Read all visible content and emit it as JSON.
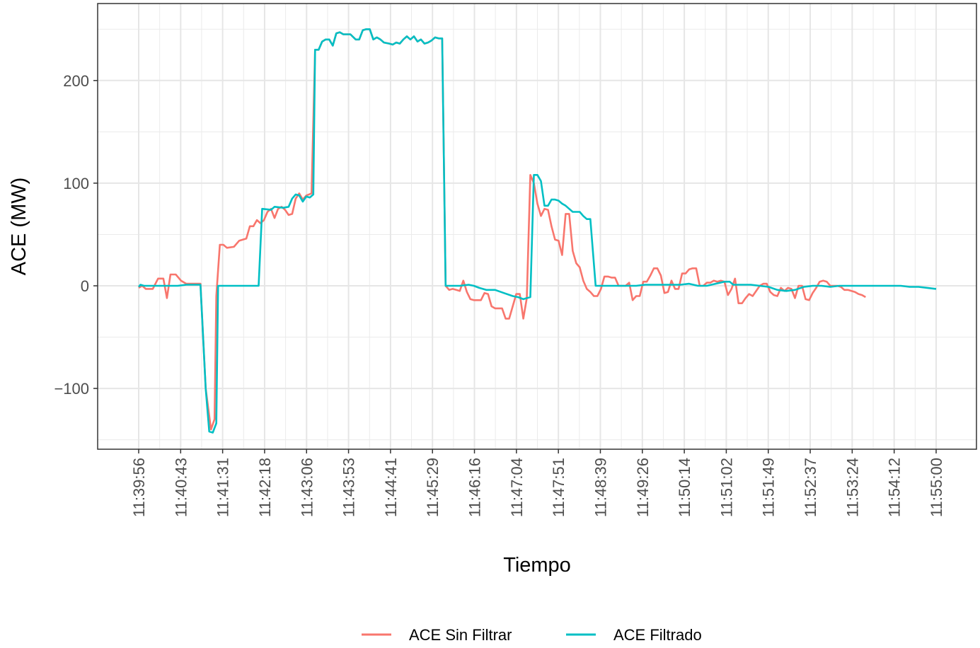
{
  "chart_data": {
    "type": "line",
    "title": "",
    "xlabel": "Tiempo",
    "ylabel": "ACE (MW)",
    "ylim": [
      -160,
      275
    ],
    "y_ticks": [
      -100,
      0,
      100,
      200
    ],
    "y_tick_labels": [
      "−100",
      "0",
      "100",
      "200"
    ],
    "x_ticks": [
      "11:39:56",
      "11:40:43",
      "11:41:31",
      "11:42:18",
      "11:43:06",
      "11:43:53",
      "11:44:41",
      "11:45:29",
      "11:46:16",
      "11:47:04",
      "11:47:51",
      "11:48:39",
      "11:49:26",
      "11:50:14",
      "11:51:02",
      "11:51:49",
      "11:52:37",
      "11:53:24",
      "11:54:12",
      "11:55:00"
    ],
    "grid": true,
    "legend_position": "bottom",
    "series": [
      {
        "name": "ACE Sin Filtrar",
        "color": "#F8766D",
        "points": [
          [
            "11:39:56",
            -2
          ],
          [
            "11:40:00",
            0
          ],
          [
            "11:40:04",
            -3
          ],
          [
            "11:40:12",
            -3
          ],
          [
            "11:40:18",
            7
          ],
          [
            "11:40:24",
            7
          ],
          [
            "11:40:28",
            -12
          ],
          [
            "11:40:32",
            11
          ],
          [
            "11:40:38",
            11
          ],
          [
            "11:40:44",
            5
          ],
          [
            "11:40:50",
            2
          ],
          [
            "11:40:56",
            2
          ],
          [
            "11:41:02",
            2
          ],
          [
            "11:41:06",
            2
          ],
          [
            "11:41:12",
            -100
          ],
          [
            "11:41:18",
            -140
          ],
          [
            "11:41:22",
            -130
          ],
          [
            "11:41:24",
            -10
          ],
          [
            "11:41:28",
            40
          ],
          [
            "11:41:32",
            40
          ],
          [
            "11:41:36",
            37
          ],
          [
            "11:41:44",
            38
          ],
          [
            "11:41:50",
            44
          ],
          [
            "11:41:58",
            46
          ],
          [
            "11:42:02",
            58
          ],
          [
            "11:42:06",
            58
          ],
          [
            "11:42:10",
            64
          ],
          [
            "11:42:14",
            61
          ],
          [
            "11:42:18",
            64
          ],
          [
            "11:42:22",
            72
          ],
          [
            "11:42:26",
            75
          ],
          [
            "11:42:30",
            66
          ],
          [
            "11:42:34",
            75
          ],
          [
            "11:42:38",
            77
          ],
          [
            "11:42:42",
            74
          ],
          [
            "11:42:46",
            69
          ],
          [
            "11:42:50",
            70
          ],
          [
            "11:42:54",
            85
          ],
          [
            "11:42:58",
            90
          ],
          [
            "11:43:02",
            84
          ],
          [
            "11:43:06",
            88
          ],
          [
            "11:43:12",
            90
          ]
        ]
      },
      {
        "name": "ACE Filtrado",
        "color": "#00BFC4",
        "points": [
          [
            "11:39:56",
            -1
          ],
          [
            "11:39:58",
            1
          ],
          [
            "11:40:02",
            0
          ],
          [
            "11:40:20",
            0
          ],
          [
            "11:40:30",
            0
          ],
          [
            "11:40:40",
            0
          ],
          [
            "11:40:50",
            1
          ],
          [
            "11:41:00",
            1
          ],
          [
            "11:41:06",
            1
          ],
          [
            "11:41:12",
            -100
          ],
          [
            "11:41:16",
            -142
          ],
          [
            "11:41:20",
            -143
          ],
          [
            "11:41:24",
            -134
          ],
          [
            "11:41:26",
            0
          ],
          [
            "11:41:40",
            0
          ],
          [
            "11:42:00",
            0
          ],
          [
            "11:42:12",
            0
          ],
          [
            "11:42:16",
            75
          ],
          [
            "11:42:26",
            74
          ],
          [
            "11:42:30",
            77
          ],
          [
            "11:42:40",
            76
          ],
          [
            "11:42:46",
            77
          ],
          [
            "11:42:50",
            85
          ],
          [
            "11:42:54",
            89
          ],
          [
            "11:42:58",
            88
          ],
          [
            "11:43:02",
            82
          ],
          [
            "11:43:06",
            87
          ],
          [
            "11:43:10",
            86
          ],
          [
            "11:43:14",
            89
          ],
          [
            "11:43:16",
            230
          ],
          [
            "11:43:20",
            230
          ],
          [
            "11:43:24",
            238
          ],
          [
            "11:43:28",
            240
          ],
          [
            "11:43:32",
            240
          ],
          [
            "11:43:36",
            234
          ],
          [
            "11:43:40",
            246
          ],
          [
            "11:43:44",
            247
          ],
          [
            "11:43:48",
            245
          ],
          [
            "11:43:56",
            245
          ],
          [
            "11:44:02",
            240
          ],
          [
            "11:44:06",
            240
          ],
          [
            "11:44:10",
            249
          ],
          [
            "11:44:14",
            250
          ],
          [
            "11:44:18",
            250
          ],
          [
            "11:44:22",
            240
          ],
          [
            "11:44:26",
            242
          ],
          [
            "11:44:30",
            240
          ],
          [
            "11:44:34",
            237
          ],
          [
            "11:44:40",
            236
          ],
          [
            "11:44:44",
            235
          ],
          [
            "11:44:48",
            237
          ],
          [
            "11:44:52",
            236
          ],
          [
            "11:44:56",
            240
          ],
          [
            "11:45:00",
            243
          ],
          [
            "11:45:04",
            240
          ],
          [
            "11:45:08",
            243
          ],
          [
            "11:45:12",
            238
          ],
          [
            "11:45:16",
            240
          ],
          [
            "11:45:20",
            236
          ],
          [
            "11:45:24",
            237
          ],
          [
            "11:45:28",
            239
          ],
          [
            "11:45:32",
            242
          ],
          [
            "11:45:36",
            241
          ],
          [
            "11:45:40",
            241
          ],
          [
            "11:45:44",
            0
          ],
          [
            "11:45:48",
            0
          ],
          [
            "11:46:00",
            0
          ],
          [
            "11:46:10",
            1
          ],
          [
            "11:46:16",
            0
          ],
          [
            "11:46:22",
            -2
          ],
          [
            "11:46:30",
            -4
          ],
          [
            "11:46:40",
            -4
          ],
          [
            "11:46:50",
            -7
          ],
          [
            "11:47:00",
            -10
          ],
          [
            "11:47:06",
            -11
          ],
          [
            "11:47:12",
            -13
          ],
          [
            "11:47:16",
            -12
          ],
          [
            "11:47:20",
            -11
          ],
          [
            "11:47:24",
            108
          ],
          [
            "11:47:28",
            108
          ],
          [
            "11:47:32",
            102
          ],
          [
            "11:47:36",
            78
          ],
          [
            "11:47:40",
            78
          ],
          [
            "11:47:44",
            84
          ],
          [
            "11:47:48",
            84
          ],
          [
            "11:47:52",
            83
          ],
          [
            "11:47:56",
            80
          ],
          [
            "11:48:00",
            78
          ],
          [
            "11:48:04",
            75
          ],
          [
            "11:48:08",
            72
          ],
          [
            "11:48:12",
            72
          ],
          [
            "11:48:16",
            72
          ],
          [
            "11:48:20",
            68
          ],
          [
            "11:48:24",
            65
          ],
          [
            "11:48:28",
            65
          ],
          [
            "11:48:34",
            0
          ],
          [
            "11:48:40",
            0
          ],
          [
            "11:49:00",
            0
          ],
          [
            "11:49:10",
            0
          ],
          [
            "11:49:20",
            0
          ],
          [
            "11:49:30",
            1
          ],
          [
            "11:49:40",
            1
          ],
          [
            "11:50:00",
            1
          ],
          [
            "11:50:10",
            1
          ],
          [
            "11:50:20",
            2
          ],
          [
            "11:50:30",
            0
          ],
          [
            "11:50:40",
            0
          ],
          [
            "11:50:50",
            2
          ],
          [
            "11:51:00",
            4
          ],
          [
            "11:51:06",
            4
          ],
          [
            "11:51:10",
            1
          ],
          [
            "11:51:20",
            1
          ],
          [
            "11:51:30",
            1
          ],
          [
            "11:51:40",
            0
          ],
          [
            "11:51:50",
            -1
          ],
          [
            "11:52:00",
            -4
          ],
          [
            "11:52:10",
            -5
          ],
          [
            "11:52:20",
            -4
          ],
          [
            "11:52:30",
            -1
          ],
          [
            "11:52:40",
            0
          ],
          [
            "11:52:50",
            0
          ],
          [
            "11:53:00",
            -1
          ],
          [
            "11:53:10",
            0
          ],
          [
            "11:53:20",
            0
          ],
          [
            "11:53:30",
            0
          ],
          [
            "11:53:40",
            0
          ],
          [
            "11:53:50",
            0
          ],
          [
            "11:54:00",
            0
          ],
          [
            "11:54:10",
            0
          ],
          [
            "11:54:20",
            0
          ],
          [
            "11:54:30",
            -1
          ],
          [
            "11:54:40",
            -1
          ],
          [
            "11:54:50",
            -2
          ],
          [
            "11:55:00",
            -3
          ]
        ]
      }
    ],
    "unfiltered_extra": [
      [
        "11:43:16",
        230
      ],
      [
        "11:43:20",
        230
      ],
      [
        "11:43:24",
        238
      ],
      [
        "11:43:28",
        240
      ],
      [
        "11:43:32",
        240
      ],
      [
        "11:43:36",
        234
      ],
      [
        "11:43:40",
        246
      ],
      [
        "11:43:44",
        247
      ],
      [
        "11:43:48",
        245
      ],
      [
        "11:43:56",
        245
      ],
      [
        "11:44:02",
        240
      ],
      [
        "11:44:06",
        240
      ],
      [
        "11:44:10",
        249
      ],
      [
        "11:44:14",
        250
      ],
      [
        "11:44:18",
        250
      ],
      [
        "11:44:22",
        240
      ],
      [
        "11:44:26",
        242
      ],
      [
        "11:44:30",
        240
      ],
      [
        "11:44:34",
        237
      ],
      [
        "11:44:40",
        236
      ],
      [
        "11:44:44",
        235
      ],
      [
        "11:44:48",
        237
      ],
      [
        "11:44:52",
        236
      ],
      [
        "11:44:56",
        240
      ],
      [
        "11:45:00",
        243
      ],
      [
        "11:45:04",
        240
      ],
      [
        "11:45:08",
        243
      ],
      [
        "11:45:12",
        238
      ],
      [
        "11:45:16",
        240
      ],
      [
        "11:45:20",
        236
      ],
      [
        "11:45:24",
        237
      ],
      [
        "11:45:28",
        239
      ],
      [
        "11:45:32",
        242
      ],
      [
        "11:45:36",
        241
      ],
      [
        "11:45:40",
        241
      ],
      [
        "11:45:44",
        0
      ],
      [
        "11:45:48",
        -4
      ],
      [
        "11:45:52",
        -3
      ],
      [
        "11:45:56",
        -4
      ],
      [
        "11:46:00",
        -5
      ],
      [
        "11:46:04",
        5
      ],
      [
        "11:46:08",
        -6
      ],
      [
        "11:46:12",
        -13
      ],
      [
        "11:46:16",
        -14
      ],
      [
        "11:46:24",
        -14
      ],
      [
        "11:46:28",
        -7
      ],
      [
        "11:46:32",
        -8
      ],
      [
        "11:46:36",
        -20
      ],
      [
        "11:46:40",
        -22
      ],
      [
        "11:46:48",
        -22
      ],
      [
        "11:46:52",
        -32
      ],
      [
        "11:46:56",
        -32
      ],
      [
        "11:47:00",
        -20
      ],
      [
        "11:47:04",
        -8
      ],
      [
        "11:47:08",
        -8
      ],
      [
        "11:47:12",
        -32
      ],
      [
        "11:47:16",
        -12
      ],
      [
        "11:47:20",
        108
      ],
      [
        "11:47:24",
        100
      ],
      [
        "11:47:28",
        80
      ],
      [
        "11:47:32",
        68
      ],
      [
        "11:47:36",
        75
      ],
      [
        "11:47:40",
        74
      ],
      [
        "11:47:44",
        58
      ],
      [
        "11:47:48",
        45
      ],
      [
        "11:47:52",
        44
      ],
      [
        "11:47:56",
        30
      ],
      [
        "11:48:00",
        70
      ],
      [
        "11:48:04",
        70
      ],
      [
        "11:48:08",
        34
      ],
      [
        "11:48:12",
        22
      ],
      [
        "11:48:16",
        18
      ],
      [
        "11:48:20",
        5
      ],
      [
        "11:48:24",
        -3
      ],
      [
        "11:48:28",
        -6
      ],
      [
        "11:48:32",
        -10
      ],
      [
        "11:48:36",
        -10
      ],
      [
        "11:48:40",
        -3
      ],
      [
        "11:48:44",
        9
      ],
      [
        "11:48:48",
        9
      ],
      [
        "11:48:52",
        8
      ],
      [
        "11:48:56",
        8
      ],
      [
        "11:49:00",
        0
      ],
      [
        "11:49:04",
        0
      ],
      [
        "11:49:08",
        0
      ],
      [
        "11:49:12",
        3
      ],
      [
        "11:49:16",
        -14
      ],
      [
        "11:49:20",
        -10
      ],
      [
        "11:49:24",
        -10
      ],
      [
        "11:49:28",
        4
      ],
      [
        "11:49:32",
        4
      ],
      [
        "11:49:36",
        10
      ],
      [
        "11:49:40",
        17
      ],
      [
        "11:49:44",
        17
      ],
      [
        "11:49:48",
        10
      ],
      [
        "11:49:52",
        -7
      ],
      [
        "11:49:56",
        -6
      ],
      [
        "11:50:00",
        5
      ],
      [
        "11:50:04",
        -3
      ],
      [
        "11:50:08",
        -3
      ],
      [
        "11:50:12",
        12
      ],
      [
        "11:50:16",
        12
      ],
      [
        "11:50:20",
        16
      ],
      [
        "11:50:24",
        17
      ],
      [
        "11:50:28",
        17
      ],
      [
        "11:50:32",
        0
      ],
      [
        "11:50:36",
        0
      ],
      [
        "11:50:40",
        3
      ],
      [
        "11:50:44",
        3
      ],
      [
        "11:50:48",
        5
      ],
      [
        "11:50:52",
        4
      ],
      [
        "11:50:56",
        5
      ],
      [
        "11:51:00",
        4
      ],
      [
        "11:51:04",
        -9
      ],
      [
        "11:51:08",
        -3
      ],
      [
        "11:51:12",
        7
      ],
      [
        "11:51:16",
        -17
      ],
      [
        "11:51:20",
        -17
      ],
      [
        "11:51:24",
        -12
      ],
      [
        "11:51:28",
        -8
      ],
      [
        "11:51:32",
        -10
      ],
      [
        "11:51:36",
        -5
      ],
      [
        "11:51:40",
        0
      ],
      [
        "11:51:44",
        2
      ],
      [
        "11:51:48",
        2
      ],
      [
        "11:51:52",
        -6
      ],
      [
        "11:51:56",
        -9
      ],
      [
        "11:52:00",
        -10
      ],
      [
        "11:52:04",
        -2
      ],
      [
        "11:52:08",
        -5
      ],
      [
        "11:52:12",
        -2
      ],
      [
        "11:52:16",
        -3
      ],
      [
        "11:52:20",
        -12
      ],
      [
        "11:52:24",
        0
      ],
      [
        "11:52:28",
        0
      ],
      [
        "11:52:32",
        -13
      ],
      [
        "11:52:36",
        -14
      ],
      [
        "11:52:40",
        -7
      ],
      [
        "11:52:44",
        -2
      ],
      [
        "11:52:48",
        4
      ],
      [
        "11:52:52",
        5
      ],
      [
        "11:52:56",
        4
      ],
      [
        "11:53:00",
        0
      ],
      [
        "11:53:04",
        0
      ],
      [
        "11:53:08",
        0
      ],
      [
        "11:53:12",
        -1
      ],
      [
        "11:53:16",
        -4
      ],
      [
        "11:53:20",
        -4
      ],
      [
        "11:53:24",
        -5
      ],
      [
        "11:53:28",
        -6
      ],
      [
        "11:53:32",
        -8
      ],
      [
        "11:53:36",
        -9
      ],
      [
        "11:53:40",
        -11
      ]
    ]
  },
  "legend": {
    "items": [
      {
        "label": "ACE Sin Filtrar",
        "color": "#F8766D"
      },
      {
        "label": "ACE Filtrado",
        "color": "#00BFC4"
      }
    ]
  }
}
